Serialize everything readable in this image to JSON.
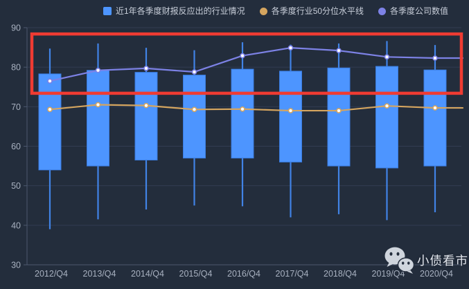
{
  "legend": {
    "items": [
      {
        "label": "近1年各季度财报反应出的行业情况",
        "marker": "square",
        "color": "#4d95ff"
      },
      {
        "label": "各季度行业50分位水平线",
        "marker": "circle",
        "color": "#d5a55f"
      },
      {
        "label": "各季度公司数值",
        "marker": "circle",
        "color": "#7d82e6"
      }
    ]
  },
  "watermark": {
    "text": "小债看市",
    "icon": "wechat-icon"
  },
  "colors": {
    "background": "#232d3c",
    "box_fill": "#4d95ff",
    "box_border": "#3a7ce0",
    "whisker": "#4183e6",
    "median_line": "#d5a55f",
    "company_line": "#7d82e6",
    "highlight_rect": "#ef3b32",
    "grid": "#333d52",
    "axis": "#4c586e",
    "tick_text": "#a8b1c0",
    "legend_text": "#c9cfda",
    "watermark_text": "#e3e7ee"
  },
  "chart_data": {
    "type": "boxplot",
    "title": "",
    "xlabel": "",
    "ylabel": "",
    "categories": [
      "2012/Q4",
      "2013/Q4",
      "2014/Q4",
      "2015/Q4",
      "2016/Q4",
      "2017/Q4",
      "2018/Q4",
      "2019/Q4",
      "2020/Q4"
    ],
    "ylim": [
      30,
      90
    ],
    "yticks": [
      30,
      40,
      50,
      60,
      70,
      80,
      90
    ],
    "grid": true,
    "legend_position": "top",
    "series": [
      {
        "name": "近1年各季度财报反应出的行业情况",
        "type": "boxplot",
        "color": "#4d95ff",
        "data_format": [
          "whisker_low",
          "box_bottom",
          "box_top",
          "whisker_high"
        ],
        "data": [
          [
            39.0,
            54.0,
            78.3,
            84.7
          ],
          [
            41.5,
            55.0,
            79.2,
            86.0
          ],
          [
            44.0,
            56.5,
            78.7,
            84.9
          ],
          [
            45.0,
            57.0,
            78.0,
            84.3
          ],
          [
            44.8,
            57.0,
            79.5,
            86.3
          ],
          [
            42.0,
            56.0,
            79.0,
            85.7
          ],
          [
            42.8,
            55.0,
            79.8,
            86.0
          ],
          [
            41.3,
            54.5,
            80.2,
            86.6
          ],
          [
            43.3,
            55.0,
            79.3,
            85.6
          ]
        ]
      },
      {
        "name": "各季度行业50分位水平线",
        "type": "line",
        "color": "#d5a55f",
        "values": [
          69.3,
          70.5,
          70.3,
          69.3,
          69.4,
          69.0,
          69.0,
          70.2,
          69.7
        ]
      },
      {
        "name": "各季度公司数值",
        "type": "line",
        "color": "#7d82e6",
        "values": [
          76.5,
          79.2,
          79.7,
          78.8,
          82.9,
          84.9,
          84.2,
          82.6,
          82.3
        ]
      }
    ],
    "annotations": [
      {
        "type": "rect",
        "color": "#ef3b32",
        "y_from": 73.4,
        "y_to": 88.4,
        "x_span": "full"
      }
    ]
  }
}
